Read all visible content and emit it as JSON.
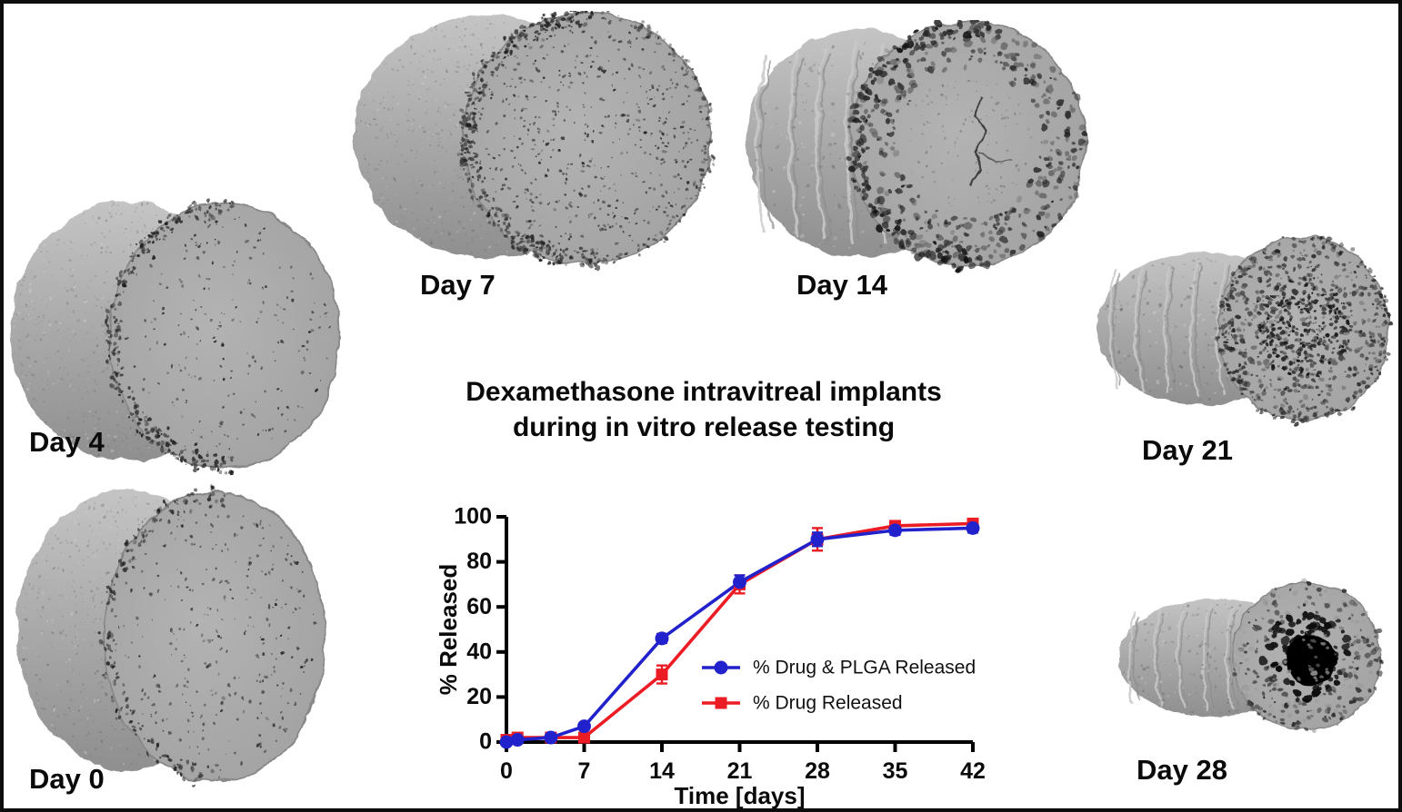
{
  "figure": {
    "title_line1": "Dexamethasone intravitreal implants",
    "title_line2": "during in vitro release testing"
  },
  "implants": [
    {
      "label": "Day 0"
    },
    {
      "label": "Day 4"
    },
    {
      "label": "Day 7"
    },
    {
      "label": "Day 14"
    },
    {
      "label": "Day 21"
    },
    {
      "label": "Day 28"
    }
  ],
  "chart_data": {
    "type": "line",
    "title": "",
    "xlabel": "Time [days]",
    "ylabel": "% Released",
    "xlim": [
      0,
      42
    ],
    "ylim": [
      0,
      100
    ],
    "xticks": [
      0,
      7,
      14,
      21,
      28,
      35,
      42
    ],
    "yticks": [
      0,
      20,
      40,
      60,
      80,
      100
    ],
    "grid": false,
    "legend_position": "inside-right",
    "axis_color": "#000000",
    "series": [
      {
        "name": "% Drug & PLGA Released",
        "color": "#2222cc",
        "marker": "circle",
        "x": [
          0,
          1,
          4,
          7,
          14,
          21,
          28,
          35,
          42
        ],
        "y": [
          0,
          1,
          2,
          7,
          46,
          71,
          90,
          94,
          95
        ],
        "yerr": [
          0.5,
          1,
          1,
          1.5,
          2,
          3,
          3,
          2,
          2
        ]
      },
      {
        "name": "% Drug Released",
        "color": "#ec1c24",
        "marker": "square",
        "x": [
          0,
          1,
          4,
          7,
          14,
          21,
          28,
          35,
          42
        ],
        "y": [
          1,
          2,
          2,
          2,
          30,
          70,
          90,
          96,
          97
        ],
        "yerr": [
          1,
          1,
          1,
          2,
          4,
          4,
          5,
          2,
          2
        ]
      }
    ]
  }
}
